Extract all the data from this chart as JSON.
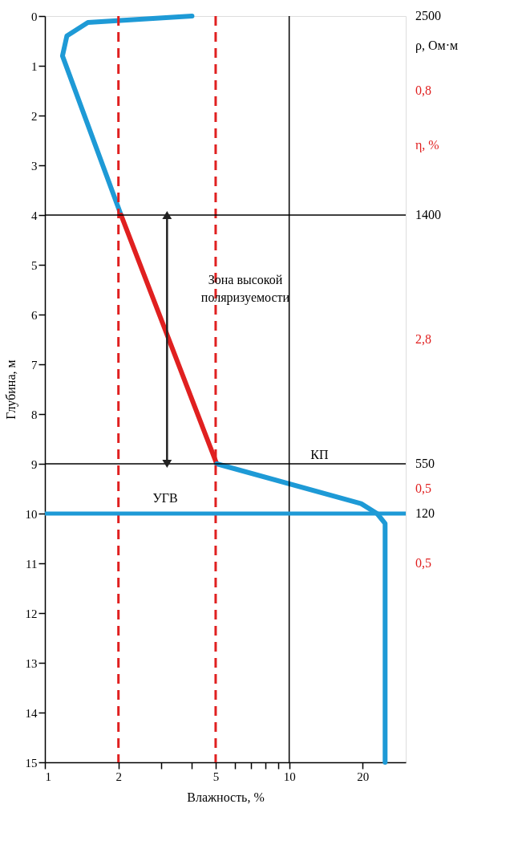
{
  "chart_data": {
    "type": "line",
    "xlabel": "Влажность, %",
    "ylabel": "Глубина, м",
    "log": "x",
    "xlim": [
      1,
      30
    ],
    "ylim": [
      15,
      0
    ],
    "xticks": [
      1,
      2,
      {
        "value": 3,
        "label": null
      },
      {
        "value": 4,
        "label": null
      },
      5,
      {
        "value": 6,
        "label": null
      },
      {
        "value": 7,
        "label": null
      },
      {
        "value": 8,
        "label": null
      },
      {
        "value": 9,
        "label": null
      },
      10,
      20
    ],
    "yticks": [
      0,
      1,
      2,
      3,
      4,
      5,
      6,
      7,
      8,
      9,
      10,
      11,
      12,
      13,
      14,
      15
    ],
    "marker": "none",
    "line_style": "solid",
    "series": [
      {
        "color": "#1e9ad6",
        "x": [
          4.0,
          1.5,
          1.23,
          1.18,
          2.05
        ],
        "values": [
          0,
          0.13,
          0.4,
          0.8,
          4.0
        ]
      },
      {
        "color": "#e02020",
        "x": [
          2.05,
          5.05
        ],
        "values": [
          4.0,
          9.0
        ]
      },
      {
        "color": "#1e9ad6",
        "x": [
          5.05,
          19.7,
          22.9,
          24.7,
          24.7
        ],
        "values": [
          9.0,
          9.8,
          10.0,
          10.2,
          15
        ]
      }
    ],
    "ref_lines": [
      {
        "axis": "x",
        "value": 2,
        "color": "#e02020",
        "line_style": "dashed"
      },
      {
        "axis": "x",
        "value": 5,
        "color": "#e02020",
        "line_style": "dashed"
      },
      {
        "axis": "x",
        "value": 10,
        "color": "#000000",
        "line_style": "solid"
      },
      {
        "axis": "y",
        "value": 4,
        "color": "#000000",
        "line_style": "solid"
      },
      {
        "axis": "y",
        "value": 9,
        "color": "#000000",
        "line_style": "solid"
      },
      {
        "axis": "y",
        "value": 10,
        "color": "#1e9ad6",
        "line_style": "solid"
      }
    ],
    "annotations": [
      "Зона высокой поляризуемости",
      {
        "text": "КП",
        "x": 13.3,
        "y": 9
      },
      "УГВ",
      "2500",
      "ρ, Ом·м",
      "0,8",
      "η, %",
      "1400",
      "2,8",
      "550",
      "0,5",
      "120",
      "0,5"
    ]
  }
}
